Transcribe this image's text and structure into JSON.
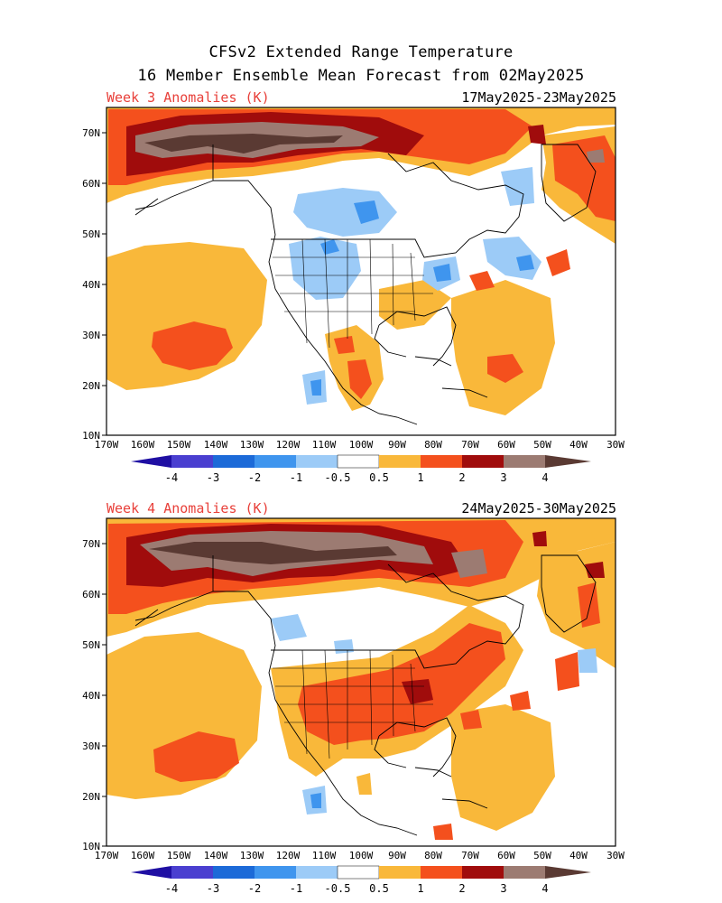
{
  "header": {
    "title_line1": "CFSv2 Extended Range Temperature",
    "title_line2": "16 Member Ensemble Mean Forecast from 02May2025"
  },
  "panels": [
    {
      "id": "week3",
      "label": "Week 3 Anomalies (K)",
      "dates": "17May2025-23May2025"
    },
    {
      "id": "week4",
      "label": "Week 4 Anomalies (K)",
      "dates": "24May2025-30May2025"
    }
  ],
  "axes": {
    "lat_labels": [
      "70N",
      "60N",
      "50N",
      "40N",
      "30N",
      "20N",
      "10N"
    ],
    "lon_labels": [
      "170W",
      "160W",
      "150W",
      "140W",
      "130W",
      "120W",
      "110W",
      "100W",
      "90W",
      "80W",
      "70W",
      "60W",
      "50W",
      "40W",
      "30W"
    ]
  },
  "colorbar": {
    "tick_labels": [
      "-4",
      "-3",
      "-2",
      "-1",
      "-0.5",
      "0.5",
      "1",
      "2",
      "3",
      "4"
    ],
    "colors": [
      "#1f0fa3",
      "#4a3fd0",
      "#1c6ad8",
      "#3f95ee",
      "#9ccbf7",
      "#ffffff",
      "#f9b83a",
      "#f4501d",
      "#a00c0c",
      "#9c7b72",
      "#5a3a33"
    ]
  },
  "palette": {
    "light_blue": "#9ccbf7",
    "mid_blue": "#3f95ee",
    "orange": "#f9b83a",
    "red_orange": "#f4501d",
    "dark_red": "#a00c0c",
    "brown": "#9c7b72",
    "dark_brown": "#5a3a33",
    "title_red": "#e8403a"
  }
}
